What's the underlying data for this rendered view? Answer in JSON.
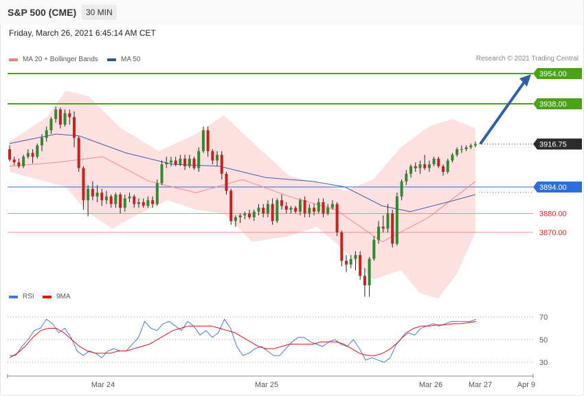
{
  "header": {
    "instrument": "S&P 500 (CME)",
    "timeframe": "30 MIN",
    "date": "Friday, March 26, 2021 6:45:14 AM CET",
    "credit": "Research © 2021 Trading Central"
  },
  "legend_main": [
    {
      "label": "MA 20 + Bollinger Bands",
      "color": "#f08080"
    },
    {
      "label": "MA 50",
      "color": "#2f5597"
    }
  ],
  "legend_rsi": [
    {
      "label": "RSI",
      "color": "#4a78d0"
    },
    {
      "label": "9MA",
      "color": "#e01010"
    }
  ],
  "colors": {
    "up": "#2f8a2f",
    "down": "#c81f1f",
    "bollinger_fill": "#fde1e1",
    "ma20": "#f08a8a",
    "ma50": "#3e5da8",
    "resistance": "#4aa11a",
    "support_blue": "#2d6fd8",
    "support_red": "#f08c8c",
    "arrow": "#2f5fa8"
  },
  "levels": [
    {
      "value": 3954.0,
      "label": "3954.00",
      "kind": "resistance"
    },
    {
      "value": 3938.0,
      "label": "3938.00",
      "kind": "resistance"
    },
    {
      "value": 3916.75,
      "label": "3916.75",
      "kind": "last"
    },
    {
      "value": 3894.0,
      "label": "3894.00",
      "kind": "pivot"
    },
    {
      "value": 3880.0,
      "label": "3880.00",
      "kind": "support"
    },
    {
      "value": 3870.0,
      "label": "3870.00",
      "kind": "support"
    }
  ],
  "x_axis_labels": [
    "Mar 24",
    "Mar 25",
    "Mar 26",
    "Mar 27",
    "Apr 9"
  ],
  "chart_data": [
    {
      "type": "candlestick",
      "title": "S&P 500 (CME)",
      "timeframe": "30 MIN",
      "overlays": [
        "MA 20 + Bollinger Bands",
        "MA 50"
      ],
      "y_range": [
        3835,
        3958
      ],
      "candles": [
        [
          3914.0,
          3916.0,
          3907.5,
          3908.5
        ],
        [
          3908.5,
          3910.0,
          3905.5,
          3907.0
        ],
        [
          3907.0,
          3909.0,
          3904.0,
          3905.0
        ],
        [
          3905.0,
          3911.0,
          3904.0,
          3910.0
        ],
        [
          3910.0,
          3914.0,
          3909.0,
          3912.0
        ],
        [
          3912.0,
          3914.0,
          3906.5,
          3910.0
        ],
        [
          3910.0,
          3917.0,
          3909.0,
          3916.0
        ],
        [
          3916.0,
          3922.0,
          3913.0,
          3920.0
        ],
        [
          3920.0,
          3926.0,
          3918.0,
          3924.0
        ],
        [
          3924.0,
          3931.0,
          3922.0,
          3930.0
        ],
        [
          3930.0,
          3936.5,
          3928.0,
          3935.0
        ],
        [
          3935.0,
          3936.0,
          3925.0,
          3927.0
        ],
        [
          3927.0,
          3935.0,
          3926.0,
          3933.0
        ],
        [
          3933.0,
          3935.0,
          3927.0,
          3931.0
        ],
        [
          3931.0,
          3934.0,
          3915.0,
          3920.0
        ],
        [
          3920.0,
          3921.0,
          3902.0,
          3904.0
        ],
        [
          3904.0,
          3905.0,
          3882.0,
          3887.0
        ],
        [
          3887.0,
          3895.0,
          3878.5,
          3893.0
        ],
        [
          3893.0,
          3897.0,
          3887.0,
          3889.0
        ],
        [
          3889.0,
          3895.0,
          3886.0,
          3891.0
        ],
        [
          3891.0,
          3893.0,
          3884.0,
          3887.0
        ],
        [
          3887.0,
          3892.0,
          3885.0,
          3889.0
        ],
        [
          3889.0,
          3890.0,
          3883.0,
          3885.0
        ],
        [
          3885.0,
          3891.0,
          3883.0,
          3890.0
        ],
        [
          3890.0,
          3891.0,
          3880.0,
          3883.0
        ],
        [
          3883.0,
          3890.0,
          3881.0,
          3888.0
        ],
        [
          3888.0,
          3891.0,
          3886.0,
          3889.0
        ],
        [
          3889.0,
          3890.0,
          3883.0,
          3885.0
        ],
        [
          3885.0,
          3888.0,
          3883.0,
          3886.0
        ],
        [
          3886.0,
          3888.0,
          3883.0,
          3884.0
        ],
        [
          3884.0,
          3889.0,
          3883.0,
          3887.0
        ],
        [
          3887.0,
          3889.0,
          3883.0,
          3885.0
        ],
        [
          3885.0,
          3898.0,
          3884.0,
          3896.0
        ],
        [
          3896.0,
          3908.0,
          3895.0,
          3906.0
        ],
        [
          3906.0,
          3910.0,
          3904.0,
          3907.0
        ],
        [
          3907.0,
          3910.0,
          3905.0,
          3908.0
        ],
        [
          3908.0,
          3910.0,
          3905.0,
          3906.0
        ],
        [
          3906.0,
          3911.0,
          3905.0,
          3909.0
        ],
        [
          3909.0,
          3911.0,
          3903.0,
          3905.0
        ],
        [
          3905.0,
          3911.0,
          3904.0,
          3909.0
        ],
        [
          3909.0,
          3910.0,
          3903.0,
          3904.0
        ],
        [
          3904.0,
          3915.0,
          3902.0,
          3913.0
        ],
        [
          3913.0,
          3926.0,
          3912.0,
          3924.0
        ],
        [
          3924.0,
          3926.0,
          3910.0,
          3913.0
        ],
        [
          3913.0,
          3914.0,
          3906.0,
          3908.0
        ],
        [
          3908.0,
          3913.0,
          3905.0,
          3911.0
        ],
        [
          3911.0,
          3913.0,
          3898.0,
          3901.0
        ],
        [
          3901.0,
          3902.0,
          3890.0,
          3892.0
        ],
        [
          3892.0,
          3893.0,
          3874.0,
          3876.0
        ],
        [
          3876.0,
          3879.0,
          3873.0,
          3878.0
        ],
        [
          3878.0,
          3880.0,
          3875.0,
          3879.0
        ],
        [
          3879.0,
          3881.0,
          3877.0,
          3880.0
        ],
        [
          3880.0,
          3882.0,
          3877.0,
          3878.0
        ],
        [
          3878.0,
          3882.0,
          3876.0,
          3881.0
        ],
        [
          3881.0,
          3885.0,
          3879.0,
          3883.0
        ],
        [
          3883.0,
          3885.0,
          3878.0,
          3880.0
        ],
        [
          3880.0,
          3887.0,
          3878.0,
          3885.0
        ],
        [
          3885.0,
          3888.0,
          3874.0,
          3876.0
        ],
        [
          3876.0,
          3888.0,
          3875.0,
          3887.0
        ],
        [
          3887.0,
          3890.0,
          3882.0,
          3884.0
        ],
        [
          3884.0,
          3886.0,
          3880.0,
          3882.0
        ],
        [
          3882.0,
          3884.0,
          3880.0,
          3883.0
        ],
        [
          3883.0,
          3884.0,
          3880.0,
          3881.0
        ],
        [
          3881.0,
          3888.0,
          3879.0,
          3887.0
        ],
        [
          3887.0,
          3889.0,
          3878.0,
          3880.0
        ],
        [
          3880.0,
          3885.0,
          3878.0,
          3883.0
        ],
        [
          3883.0,
          3885.0,
          3879.0,
          3881.0
        ],
        [
          3881.0,
          3888.0,
          3880.0,
          3886.0
        ],
        [
          3886.0,
          3888.0,
          3878.0,
          3880.0
        ],
        [
          3880.0,
          3885.0,
          3879.0,
          3883.0
        ],
        [
          3883.0,
          3887.0,
          3882.0,
          3885.0
        ],
        [
          3885.0,
          3886.0,
          3868.0,
          3870.0
        ],
        [
          3870.0,
          3871.0,
          3852.0,
          3855.0
        ],
        [
          3855.0,
          3858.0,
          3849.0,
          3853.0
        ],
        [
          3853.0,
          3858.0,
          3851.0,
          3856.0
        ],
        [
          3856.0,
          3860.0,
          3850.0,
          3858.0
        ],
        [
          3858.0,
          3860.0,
          3845.0,
          3847.0
        ],
        [
          3847.0,
          3851.0,
          3836.0,
          3842.0
        ],
        [
          3842.0,
          3857.0,
          3836.0,
          3856.0
        ],
        [
          3856.0,
          3868.0,
          3855.0,
          3866.0
        ],
        [
          3866.0,
          3876.0,
          3864.0,
          3873.0
        ],
        [
          3873.0,
          3879.0,
          3870.0,
          3872.0
        ],
        [
          3872.0,
          3885.0,
          3870.0,
          3880.0
        ],
        [
          3880.0,
          3882.0,
          3862.0,
          3864.0
        ],
        [
          3864.0,
          3891.0,
          3863.0,
          3889.0
        ],
        [
          3889.0,
          3898.0,
          3887.0,
          3897.0
        ],
        [
          3897.0,
          3903.0,
          3895.0,
          3901.0
        ],
        [
          3901.0,
          3906.0,
          3899.0,
          3905.0
        ],
        [
          3905.0,
          3907.0,
          3902.0,
          3904.0
        ],
        [
          3904.0,
          3908.0,
          3901.0,
          3906.0
        ],
        [
          3906.0,
          3911.0,
          3903.0,
          3904.0
        ],
        [
          3904.0,
          3908.0,
          3902.0,
          3906.0
        ],
        [
          3906.0,
          3910.0,
          3905.0,
          3909.0
        ],
        [
          3909.0,
          3910.0,
          3904.0,
          3905.0
        ],
        [
          3905.0,
          3906.0,
          3900.0,
          3902.0
        ],
        [
          3902.0,
          3909.0,
          3901.0,
          3908.0
        ],
        [
          3908.0,
          3912.0,
          3907.0,
          3911.0
        ],
        [
          3911.0,
          3915.0,
          3910.0,
          3914.0
        ],
        [
          3914.0,
          3916.0,
          3912.0,
          3914.0
        ],
        [
          3914.0,
          3916.0,
          3913.0,
          3915.0
        ],
        [
          3915.0,
          3917.0,
          3914.0,
          3916.0
        ],
        [
          3916.0,
          3918.0,
          3915.0,
          3916.75
        ]
      ],
      "ma20": [
        [
          0,
          3905
        ],
        [
          10,
          3907
        ],
        [
          20,
          3910
        ],
        [
          30,
          3897
        ],
        [
          40,
          3891
        ],
        [
          50,
          3898
        ],
        [
          60,
          3889
        ],
        [
          70,
          3882
        ],
        [
          80,
          3865
        ],
        [
          90,
          3878
        ],
        [
          100,
          3897
        ]
      ],
      "ma50": [
        [
          0,
          3917
        ],
        [
          10,
          3922
        ],
        [
          15,
          3921
        ],
        [
          25,
          3912
        ],
        [
          35,
          3906
        ],
        [
          45,
          3905
        ],
        [
          55,
          3899
        ],
        [
          65,
          3897
        ],
        [
          72,
          3894
        ],
        [
          80,
          3884
        ],
        [
          86,
          3881
        ],
        [
          94,
          3886
        ],
        [
          100,
          3890
        ]
      ],
      "bb_upper": [
        [
          0,
          3918
        ],
        [
          8,
          3931
        ],
        [
          12,
          3945
        ],
        [
          17,
          3942
        ],
        [
          24,
          3925
        ],
        [
          32,
          3913
        ],
        [
          40,
          3922
        ],
        [
          46,
          3932
        ],
        [
          52,
          3918
        ],
        [
          60,
          3900
        ],
        [
          68,
          3895
        ],
        [
          72,
          3892
        ],
        [
          78,
          3898
        ],
        [
          84,
          3915
        ],
        [
          90,
          3926
        ],
        [
          95,
          3930
        ],
        [
          100,
          3925
        ]
      ],
      "bb_lower": [
        [
          0,
          3902
        ],
        [
          6,
          3898
        ],
        [
          12,
          3894
        ],
        [
          17,
          3880
        ],
        [
          22,
          3872
        ],
        [
          28,
          3880
        ],
        [
          34,
          3887
        ],
        [
          40,
          3882
        ],
        [
          46,
          3880
        ],
        [
          52,
          3865
        ],
        [
          60,
          3868
        ],
        [
          66,
          3873
        ],
        [
          72,
          3860
        ],
        [
          78,
          3845
        ],
        [
          84,
          3850
        ],
        [
          88,
          3838
        ],
        [
          92,
          3835
        ],
        [
          96,
          3848
        ],
        [
          100,
          3870
        ]
      ],
      "forecast_arrow": {
        "from": 3916.75,
        "to": 3954.0
      }
    },
    {
      "type": "line",
      "title": "RSI",
      "series": [
        {
          "name": "RSI",
          "values": [
            36,
            36,
            44,
            50,
            58,
            60,
            68,
            64,
            56,
            60,
            52,
            40,
            36,
            40,
            38,
            34,
            40,
            42,
            40,
            40,
            46,
            52,
            66,
            60,
            58,
            64,
            66,
            62,
            58,
            66,
            62,
            54,
            58,
            52,
            56,
            68,
            60,
            44,
            36,
            38,
            42,
            44,
            40,
            36,
            36,
            42,
            48,
            52,
            52,
            48,
            46,
            44,
            48,
            50,
            46,
            44,
            50,
            42,
            32,
            34,
            32,
            30,
            34,
            46,
            52,
            56,
            54,
            60,
            62,
            64,
            62,
            64,
            66,
            66,
            66,
            66,
            68
          ]
        },
        {
          "name": "9MA",
          "values": [
            34,
            38,
            44,
            52,
            58,
            60,
            60,
            56,
            50,
            44,
            40,
            38,
            38,
            38,
            40,
            40,
            42,
            44,
            46,
            50,
            54,
            58,
            60,
            62,
            62,
            62,
            62,
            60,
            58,
            56,
            52,
            48,
            44,
            42,
            42,
            44,
            46,
            46,
            46,
            46,
            48,
            48,
            48,
            46,
            42,
            38,
            36,
            36,
            38,
            42,
            48,
            56,
            60,
            62,
            62,
            63,
            63,
            64,
            64,
            65,
            66
          ]
        }
      ],
      "y_ticks": [
        30,
        50,
        70
      ],
      "ylim": [
        20,
        80
      ]
    }
  ]
}
